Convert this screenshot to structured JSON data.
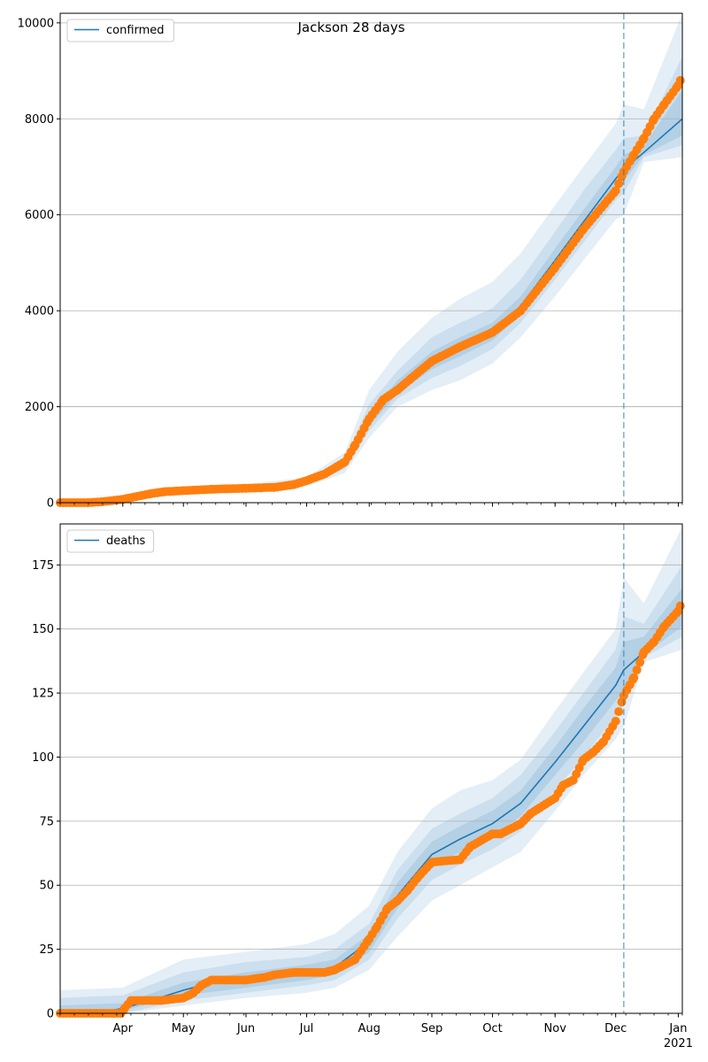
{
  "chart_data": [
    {
      "type": "line",
      "title": "Jackson 28 days",
      "legend": {
        "label": "confirmed",
        "placement": "top-left"
      },
      "ylim": [
        0,
        10200
      ],
      "yticks": [
        0,
        2000,
        4000,
        6000,
        8000,
        10000
      ],
      "xlim": [
        "2020-03-01",
        "2021-01-03"
      ],
      "grid": "y",
      "forecast_start": "2020-12-05",
      "colors": {
        "model": "#1f77b4",
        "observed": "#ff7f0e",
        "band": "#1f77b4"
      },
      "model_line": {
        "x": [
          "2020-03-01",
          "2020-03-15",
          "2020-04-01",
          "2020-04-15",
          "2020-05-01",
          "2020-05-15",
          "2020-06-01",
          "2020-06-15",
          "2020-07-01",
          "2020-07-10",
          "2020-07-20",
          "2020-08-01",
          "2020-08-08",
          "2020-08-15",
          "2020-09-01",
          "2020-09-15",
          "2020-10-01",
          "2020-10-15",
          "2020-11-01",
          "2020-11-15",
          "2020-12-01",
          "2020-12-05",
          "2020-12-15",
          "2021-01-03"
        ],
        "y": [
          10,
          20,
          60,
          150,
          250,
          280,
          300,
          330,
          420,
          550,
          800,
          1700,
          2100,
          2400,
          2950,
          3250,
          3550,
          4100,
          5050,
          5850,
          6750,
          6950,
          7300,
          8000
        ]
      },
      "bands": [
        {
          "level": "outer",
          "x": [
            "2020-03-01",
            "2020-04-01",
            "2020-05-01",
            "2020-06-01",
            "2020-07-01",
            "2020-07-20",
            "2020-08-01",
            "2020-08-15",
            "2020-09-01",
            "2020-09-15",
            "2020-10-01",
            "2020-10-15",
            "2020-11-01",
            "2020-11-15",
            "2020-12-01",
            "2020-12-05",
            "2020-12-15",
            "2021-01-03"
          ],
          "lower": [
            0,
            20,
            180,
            250,
            340,
            620,
            1350,
            2000,
            2350,
            2550,
            2900,
            3450,
            4300,
            5050,
            5900,
            6000,
            7100,
            7200
          ],
          "upper": [
            40,
            120,
            330,
            380,
            530,
            1050,
            2350,
            3150,
            3850,
            4250,
            4600,
            5200,
            6200,
            7000,
            7900,
            8300,
            8200,
            10200
          ]
        },
        {
          "level": "middle",
          "x": [
            "2020-03-01",
            "2020-04-01",
            "2020-05-01",
            "2020-06-01",
            "2020-07-01",
            "2020-07-20",
            "2020-08-01",
            "2020-08-15",
            "2020-09-01",
            "2020-09-15",
            "2020-10-01",
            "2020-10-15",
            "2020-11-01",
            "2020-11-15",
            "2020-12-01",
            "2020-12-05",
            "2020-12-15",
            "2021-01-03"
          ],
          "lower": [
            5,
            40,
            210,
            275,
            380,
            700,
            1500,
            2170,
            2600,
            2850,
            3200,
            3750,
            4650,
            5420,
            6300,
            6450,
            7200,
            7450
          ],
          "upper": [
            25,
            90,
            290,
            340,
            480,
            920,
            2050,
            2750,
            3450,
            3750,
            4050,
            4650,
            5650,
            6500,
            7350,
            7600,
            7650,
            9300
          ]
        },
        {
          "level": "inner",
          "x": [
            "2020-03-01",
            "2020-04-01",
            "2020-05-01",
            "2020-06-01",
            "2020-07-01",
            "2020-07-20",
            "2020-08-01",
            "2020-08-15",
            "2020-09-01",
            "2020-09-15",
            "2020-10-01",
            "2020-10-15",
            "2020-11-01",
            "2020-11-15",
            "2020-12-01",
            "2020-12-05",
            "2020-12-15",
            "2021-01-03"
          ],
          "lower": [
            8,
            50,
            230,
            285,
            400,
            750,
            1600,
            2270,
            2780,
            3050,
            3380,
            3920,
            4850,
            5650,
            6520,
            6700,
            7250,
            7650
          ],
          "upper": [
            15,
            75,
            270,
            320,
            445,
            860,
            1850,
            2550,
            3150,
            3450,
            3750,
            4300,
            5300,
            6100,
            7000,
            7250,
            7450,
            8600
          ]
        }
      ],
      "observed": {
        "x": [
          "2020-03-01",
          "2020-03-15",
          "2020-03-22",
          "2020-04-01",
          "2020-04-08",
          "2020-04-15",
          "2020-04-22",
          "2020-05-01",
          "2020-05-15",
          "2020-06-01",
          "2020-06-15",
          "2020-06-25",
          "2020-07-01",
          "2020-07-10",
          "2020-07-20",
          "2020-07-25",
          "2020-08-01",
          "2020-08-08",
          "2020-08-15",
          "2020-08-22",
          "2020-09-01",
          "2020-09-15",
          "2020-10-01",
          "2020-10-15",
          "2020-11-01",
          "2020-11-15",
          "2020-12-01",
          "2020-12-05",
          "2020-12-10",
          "2020-12-15",
          "2020-12-20",
          "2020-12-25",
          "2021-01-01",
          "2021-01-02"
        ],
        "y": [
          0,
          0,
          20,
          70,
          130,
          190,
          230,
          250,
          280,
          300,
          320,
          380,
          460,
          600,
          850,
          1200,
          1750,
          2150,
          2350,
          2600,
          2950,
          3250,
          3550,
          4000,
          4900,
          5700,
          6500,
          6900,
          7250,
          7600,
          8000,
          8300,
          8700,
          8800
        ]
      }
    },
    {
      "type": "line",
      "title": "",
      "legend": {
        "label": "deaths",
        "placement": "top-left"
      },
      "ylim": [
        0,
        191
      ],
      "yticks": [
        0,
        25,
        50,
        75,
        100,
        125,
        150,
        175
      ],
      "xlim": [
        "2020-03-01",
        "2021-01-03"
      ],
      "xtick_labels": [
        "Apr",
        "May",
        "Jun",
        "Jul",
        "Aug",
        "Sep",
        "Oct",
        "Nov",
        "Dec",
        "Jan"
      ],
      "year_label": "2021",
      "grid": "y",
      "forecast_start": "2020-12-05",
      "colors": {
        "model": "#1f77b4",
        "observed": "#ff7f0e",
        "band": "#1f77b4"
      },
      "model_line": {
        "x": [
          "2020-03-01",
          "2020-03-20",
          "2020-04-01",
          "2020-04-15",
          "2020-05-01",
          "2020-05-15",
          "2020-06-01",
          "2020-06-15",
          "2020-07-01",
          "2020-07-15",
          "2020-08-01",
          "2020-08-15",
          "2020-09-01",
          "2020-09-15",
          "2020-10-01",
          "2020-10-15",
          "2020-11-01",
          "2020-11-15",
          "2020-12-01",
          "2020-12-05",
          "2020-12-15",
          "2021-01-03"
        ],
        "y": [
          0,
          0,
          2,
          5,
          9,
          12,
          13,
          14,
          16,
          18,
          28,
          46,
          62,
          68,
          74,
          82,
          98,
          112,
          128,
          134,
          141,
          158
        ]
      },
      "bands": [
        {
          "level": "outer",
          "x": [
            "2020-03-01",
            "2020-04-01",
            "2020-05-01",
            "2020-06-01",
            "2020-07-01",
            "2020-07-15",
            "2020-08-01",
            "2020-08-15",
            "2020-09-01",
            "2020-09-15",
            "2020-10-01",
            "2020-10-15",
            "2020-11-01",
            "2020-11-15",
            "2020-12-01",
            "2020-12-05",
            "2020-12-15",
            "2021-01-03"
          ],
          "lower": [
            0,
            0,
            3,
            6,
            8,
            10,
            17,
            30,
            44,
            50,
            57,
            63,
            79,
            93,
            107,
            112,
            137,
            142
          ],
          "upper": [
            9,
            10,
            21,
            24,
            27,
            31,
            42,
            63,
            80,
            87,
            91,
            99,
            118,
            133,
            150,
            170,
            160,
            190
          ]
        },
        {
          "level": "middle",
          "x": [
            "2020-03-01",
            "2020-04-01",
            "2020-05-01",
            "2020-06-01",
            "2020-07-01",
            "2020-07-15",
            "2020-08-01",
            "2020-08-15",
            "2020-09-01",
            "2020-09-15",
            "2020-10-01",
            "2020-10-15",
            "2020-11-01",
            "2020-11-15",
            "2020-12-01",
            "2020-12-05",
            "2020-12-15",
            "2021-01-03"
          ],
          "lower": [
            0,
            0,
            5,
            8,
            11,
            13,
            21,
            37,
            52,
            58,
            64,
            71,
            87,
            100,
            116,
            120,
            139,
            147
          ],
          "upper": [
            6,
            7,
            16,
            20,
            22,
            25,
            35,
            56,
            72,
            78,
            84,
            93,
            110,
            125,
            142,
            155,
            152,
            175
          ]
        },
        {
          "level": "inner",
          "x": [
            "2020-03-01",
            "2020-04-01",
            "2020-05-01",
            "2020-06-01",
            "2020-07-01",
            "2020-07-15",
            "2020-08-01",
            "2020-08-15",
            "2020-09-01",
            "2020-09-15",
            "2020-10-01",
            "2020-10-15",
            "2020-11-01",
            "2020-11-15",
            "2020-12-01",
            "2020-12-05",
            "2020-12-15",
            "2021-01-03"
          ],
          "lower": [
            0,
            1,
            7,
            10,
            13,
            15,
            24,
            41,
            57,
            63,
            69,
            77,
            93,
            106,
            122,
            126,
            140,
            151
          ],
          "upper": [
            3,
            4,
            12,
            16,
            19,
            21,
            31,
            51,
            67,
            73,
            79,
            87,
            104,
            119,
            135,
            145,
            147,
            166
          ]
        }
      ],
      "observed": {
        "x": [
          "2020-03-01",
          "2020-03-31",
          "2020-04-02",
          "2020-04-05",
          "2020-04-20",
          "2020-05-01",
          "2020-05-06",
          "2020-05-10",
          "2020-05-15",
          "2020-06-01",
          "2020-06-10",
          "2020-06-15",
          "2020-06-25",
          "2020-07-01",
          "2020-07-10",
          "2020-07-15",
          "2020-07-25",
          "2020-08-01",
          "2020-08-05",
          "2020-08-10",
          "2020-08-15",
          "2020-08-20",
          "2020-08-25",
          "2020-09-01",
          "2020-09-15",
          "2020-09-20",
          "2020-10-01",
          "2020-10-05",
          "2020-10-15",
          "2020-10-20",
          "2020-11-01",
          "2020-11-05",
          "2020-11-10",
          "2020-11-15",
          "2020-11-20",
          "2020-11-25",
          "2020-12-01",
          "2020-12-05",
          "2020-12-10",
          "2020-12-15",
          "2020-12-20",
          "2020-12-25",
          "2021-01-01",
          "2021-01-02"
        ],
        "y": [
          0,
          0,
          2,
          5,
          5,
          6,
          8,
          11,
          13,
          13,
          14,
          15,
          16,
          16,
          16,
          17,
          21,
          29,
          34,
          41,
          44,
          48,
          53,
          59,
          60,
          65,
          70,
          70,
          74,
          78,
          84,
          89,
          91,
          99,
          102,
          106,
          114,
          124,
          131,
          141,
          145,
          151,
          157,
          159
        ]
      }
    }
  ]
}
